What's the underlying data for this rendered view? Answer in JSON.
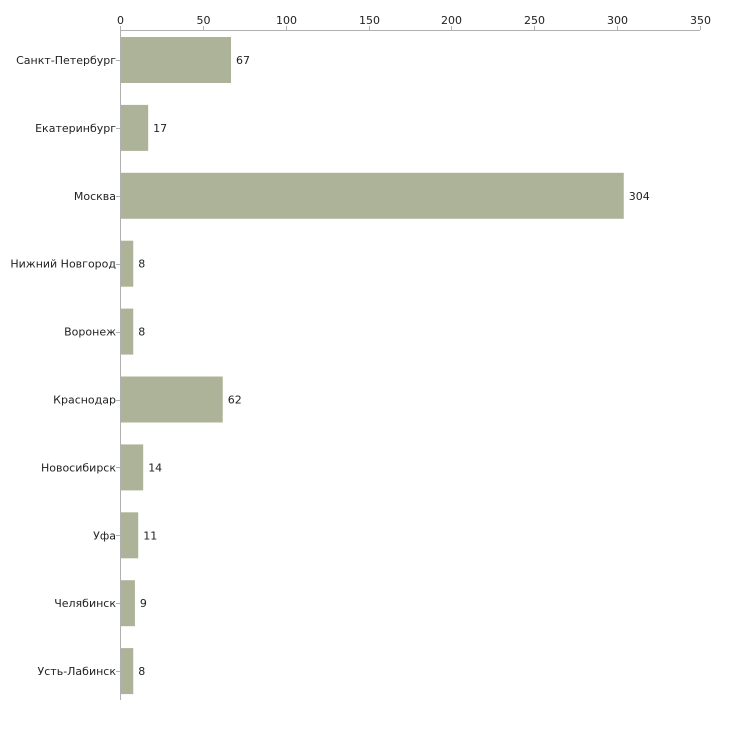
{
  "chart_data": {
    "type": "bar",
    "orientation": "horizontal",
    "title": "",
    "xlabel": "",
    "ylabel": "",
    "xlim": [
      0,
      350
    ],
    "x_ticks": [
      0,
      50,
      100,
      150,
      200,
      250,
      300,
      350
    ],
    "axis_position": "top",
    "grid": false,
    "bar_color": "#adb398",
    "axis_color": "#b0b0b0",
    "categories": [
      "Санкт-Петербург",
      "Екатеринбург",
      "Москва",
      "Нижний Новгород",
      "Воронеж",
      "Краснодар",
      "Новосибирск",
      "Уфа",
      "Челябинск",
      "Усть-Лабинск"
    ],
    "values": [
      67,
      17,
      304,
      8,
      8,
      62,
      14,
      11,
      9,
      8
    ]
  }
}
